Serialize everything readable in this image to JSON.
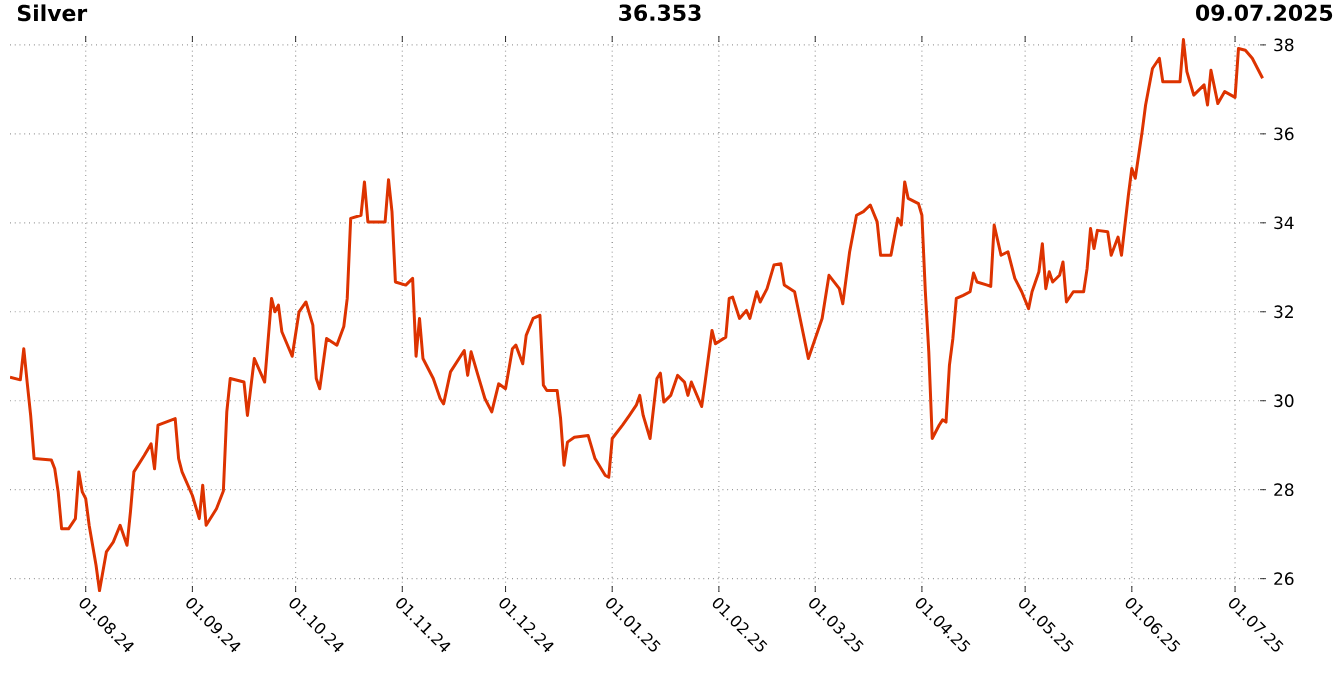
{
  "chart_data": {
    "type": "line",
    "title": "Silver",
    "annotations": [
      "36.353",
      "09.07.2025"
    ],
    "x": [
      "2024-07-10",
      "2024-07-13",
      "2024-07-14",
      "2024-07-15",
      "2024-07-16",
      "2024-07-17",
      "2024-07-22",
      "2024-07-23",
      "2024-07-24",
      "2024-07-25",
      "2024-07-27",
      "2024-07-29",
      "2024-07-30",
      "2024-07-31",
      "2024-08-01",
      "2024-08-02",
      "2024-08-04",
      "2024-08-05",
      "2024-08-07",
      "2024-08-09",
      "2024-08-11",
      "2024-08-13",
      "2024-08-14",
      "2024-08-15",
      "2024-08-18",
      "2024-08-20",
      "2024-08-21",
      "2024-08-22",
      "2024-08-27",
      "2024-08-28",
      "2024-08-29",
      "2024-09-01",
      "2024-09-03",
      "2024-09-04",
      "2024-09-05",
      "2024-09-08",
      "2024-09-10",
      "2024-09-11",
      "2024-09-12",
      "2024-09-16",
      "2024-09-17",
      "2024-09-19",
      "2024-09-22",
      "2024-09-24",
      "2024-09-25",
      "2024-09-26",
      "2024-09-27",
      "2024-09-30",
      "2024-10-02",
      "2024-10-04",
      "2024-10-06",
      "2024-10-07",
      "2024-10-08",
      "2024-10-10",
      "2024-10-13",
      "2024-10-15",
      "2024-10-16",
      "2024-10-17",
      "2024-10-20",
      "2024-10-21",
      "2024-10-22",
      "2024-10-27",
      "2024-10-28",
      "2024-10-29",
      "2024-10-30",
      "2024-11-02",
      "2024-11-04",
      "2024-11-05",
      "2024-11-06",
      "2024-11-07",
      "2024-11-10",
      "2024-11-12",
      "2024-11-13",
      "2024-11-15",
      "2024-11-19",
      "2024-11-20",
      "2024-11-21",
      "2024-11-23",
      "2024-11-25",
      "2024-11-27",
      "2024-11-29",
      "2024-12-01",
      "2024-12-03",
      "2024-12-04",
      "2024-12-06",
      "2024-12-07",
      "2024-12-09",
      "2024-12-11",
      "2024-12-12",
      "2024-12-13",
      "2024-12-16",
      "2024-12-17",
      "2024-12-18",
      "2024-12-19",
      "2024-12-21",
      "2024-12-25",
      "2024-12-27",
      "2024-12-30",
      "2024-12-31",
      "2025-01-01",
      "2025-01-04",
      "2025-01-06",
      "2025-01-08",
      "2025-01-09",
      "2025-01-10",
      "2025-01-12",
      "2025-01-14",
      "2025-01-15",
      "2025-01-16",
      "2025-01-18",
      "2025-01-20",
      "2025-01-22",
      "2025-01-23",
      "2025-01-24",
      "2025-01-27",
      "2025-01-28",
      "2025-01-30",
      "2025-01-31",
      "2025-02-03",
      "2025-02-04",
      "2025-02-05",
      "2025-02-07",
      "2025-02-09",
      "2025-02-10",
      "2025-02-12",
      "2025-02-13",
      "2025-02-15",
      "2025-02-17",
      "2025-02-19",
      "2025-02-20",
      "2025-02-23",
      "2025-02-25",
      "2025-02-27",
      "2025-03-01",
      "2025-03-03",
      "2025-03-05",
      "2025-03-08",
      "2025-03-09",
      "2025-03-11",
      "2025-03-13",
      "2025-03-15",
      "2025-03-17",
      "2025-03-19",
      "2025-03-20",
      "2025-03-23",
      "2025-03-25",
      "2025-03-26",
      "2025-03-27",
      "2025-03-28",
      "2025-03-31",
      "2025-04-01",
      "2025-04-02",
      "2025-04-03",
      "2025-04-04",
      "2025-04-06",
      "2025-04-07",
      "2025-04-08",
      "2025-04-09",
      "2025-04-10",
      "2025-04-11",
      "2025-04-13",
      "2025-04-15",
      "2025-04-16",
      "2025-04-17",
      "2025-04-20",
      "2025-04-21",
      "2025-04-22",
      "2025-04-24",
      "2025-04-26",
      "2025-04-28",
      "2025-04-30",
      "2025-05-02",
      "2025-05-03",
      "2025-05-05",
      "2025-05-06",
      "2025-05-07",
      "2025-05-08",
      "2025-05-09",
      "2025-05-11",
      "2025-05-12",
      "2025-05-13",
      "2025-05-15",
      "2025-05-18",
      "2025-05-19",
      "2025-05-20",
      "2025-05-21",
      "2025-05-22",
      "2025-05-25",
      "2025-05-26",
      "2025-05-28",
      "2025-05-29",
      "2025-05-31",
      "2025-06-01",
      "2025-06-02",
      "2025-06-04",
      "2025-06-05",
      "2025-06-07",
      "2025-06-09",
      "2025-06-10",
      "2025-06-13",
      "2025-06-15",
      "2025-06-16",
      "2025-06-17",
      "2025-06-19",
      "2025-06-22",
      "2025-06-23",
      "2025-06-24",
      "2025-06-26",
      "2025-06-28",
      "2025-07-01",
      "2025-07-02",
      "2025-07-04",
      "2025-07-06",
      "2025-07-09"
    ],
    "series": [
      {
        "color": "#dd3300",
        "values": [
          30.53,
          30.47,
          31.17,
          30.4,
          29.67,
          28.7,
          28.67,
          28.47,
          27.95,
          27.12,
          27.12,
          27.35,
          28.4,
          27.95,
          27.8,
          27.2,
          26.3,
          25.73,
          26.6,
          26.82,
          27.2,
          26.75,
          27.5,
          28.4,
          28.77,
          29.03,
          28.47,
          29.45,
          29.6,
          28.7,
          28.4,
          27.87,
          27.35,
          28.1,
          27.2,
          27.57,
          27.97,
          29.75,
          30.5,
          30.42,
          29.67,
          30.95,
          30.42,
          32.3,
          32.0,
          32.15,
          31.55,
          31.0,
          32.0,
          32.22,
          31.7,
          30.5,
          30.27,
          31.4,
          31.25,
          31.67,
          32.3,
          34.1,
          34.17,
          34.92,
          34.02,
          34.02,
          34.97,
          34.25,
          32.67,
          32.6,
          32.75,
          31.0,
          31.85,
          30.95,
          30.5,
          30.05,
          29.93,
          30.65,
          31.13,
          30.57,
          31.1,
          30.57,
          30.05,
          29.75,
          30.38,
          30.27,
          31.17,
          31.25,
          30.83,
          31.47,
          31.85,
          31.92,
          30.35,
          30.23,
          30.23,
          29.6,
          28.55,
          29.07,
          29.18,
          29.22,
          28.7,
          28.32,
          28.28,
          29.15,
          29.45,
          29.67,
          29.9,
          30.12,
          29.67,
          29.15,
          30.5,
          30.62,
          29.97,
          30.12,
          30.57,
          30.42,
          30.12,
          30.42,
          29.87,
          30.42,
          31.58,
          31.28,
          31.43,
          32.3,
          32.33,
          31.85,
          32.03,
          31.85,
          32.45,
          32.22,
          32.52,
          33.05,
          33.08,
          32.6,
          32.45,
          31.7,
          30.95,
          31.4,
          31.85,
          32.82,
          32.52,
          32.18,
          33.35,
          34.17,
          34.25,
          34.4,
          34.02,
          33.27,
          33.27,
          34.1,
          33.95,
          34.92,
          34.55,
          34.43,
          34.17,
          32.45,
          31.1,
          29.15,
          29.45,
          29.57,
          29.52,
          30.8,
          31.4,
          32.3,
          32.37,
          32.45,
          32.87,
          32.67,
          32.6,
          32.57,
          33.95,
          33.27,
          33.35,
          32.75,
          32.45,
          32.07,
          32.45,
          32.9,
          33.53,
          32.52,
          32.9,
          32.67,
          32.82,
          33.12,
          32.22,
          32.45,
          32.45,
          32.97,
          33.87,
          33.42,
          33.83,
          33.8,
          33.27,
          33.68,
          33.27,
          34.62,
          35.22,
          35.0,
          36.05,
          36.65,
          37.47,
          37.7,
          37.17,
          37.17,
          37.17,
          38.12,
          37.4,
          36.87,
          37.1,
          36.65,
          37.43,
          36.68,
          36.95,
          36.82,
          37.92,
          37.88,
          37.7,
          37.25
        ]
      }
    ],
    "xlim": [
      "2024-07-10",
      "2025-07-10"
    ],
    "xticks": [
      {
        "value": "2024-08-01",
        "label": "01.08.24"
      },
      {
        "value": "2024-09-01",
        "label": "01.09.24"
      },
      {
        "value": "2024-10-01",
        "label": "01.10.24"
      },
      {
        "value": "2024-11-01",
        "label": "01.11.24"
      },
      {
        "value": "2024-12-01",
        "label": "01.12.24"
      },
      {
        "value": "2025-01-01",
        "label": "01.01.25"
      },
      {
        "value": "2025-02-01",
        "label": "01.02.25"
      },
      {
        "value": "2025-03-01",
        "label": "01.03.25"
      },
      {
        "value": "2025-04-01",
        "label": "01.04.25"
      },
      {
        "value": "2025-05-01",
        "label": "01.05.25"
      },
      {
        "value": "2025-06-01",
        "label": "01.06.25"
      },
      {
        "value": "2025-07-01",
        "label": "01.07.25"
      }
    ],
    "ylim": [
      25.7,
      38.2
    ],
    "yticks": [
      26,
      28,
      30,
      32,
      34,
      36,
      38
    ],
    "grid": true,
    "marker": "none",
    "line_style": "solid"
  }
}
